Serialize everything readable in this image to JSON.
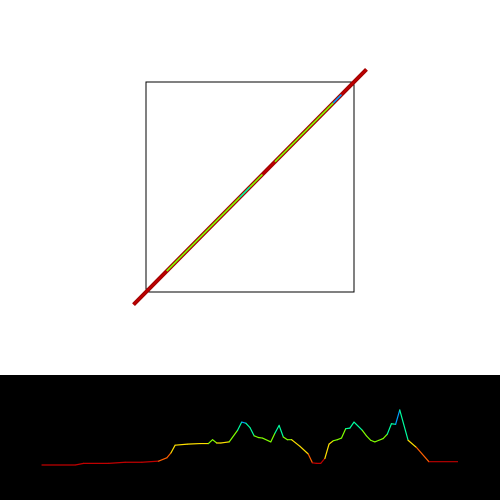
{
  "chart_data": [
    {
      "type": "line",
      "title": "",
      "xlabel": "",
      "ylabel": "",
      "xlim": [
        0,
        1
      ],
      "ylim": [
        0,
        1
      ],
      "grid": false,
      "frame_color": "#000000",
      "line_color": "#a00000",
      "colormap": [
        "#0000ff",
        "#00a0ff",
        "#00ffa0",
        "#80ff00",
        "#ffe000",
        "#ff6000",
        "#c00000"
      ],
      "series": [
        {
          "x": [
            -0.06,
            1.06
          ],
          "y": [
            -0.06,
            1.06
          ],
          "color_bands": [
            {
              "t": [
                -0.06,
                0.1
              ],
              "level": 0.02
            },
            {
              "t": [
                0.1,
                0.45
              ],
              "level": 0.45
            },
            {
              "t": [
                0.45,
                0.5
              ],
              "level": 0.7
            },
            {
              "t": [
                0.5,
                0.56
              ],
              "level": 0.45
            },
            {
              "t": [
                0.56,
                0.62
              ],
              "level": 0.02
            },
            {
              "t": [
                0.62,
                0.9
              ],
              "level": 0.45
            },
            {
              "t": [
                0.9,
                0.94
              ],
              "level": 0.85
            },
            {
              "t": [
                0.94,
                1.06
              ],
              "level": 0.02
            }
          ]
        }
      ]
    },
    {
      "type": "line",
      "title": "",
      "xlabel": "",
      "ylabel": "",
      "background": "#000000",
      "grid": false,
      "xlim": [
        0,
        1
      ],
      "ylim": [
        0,
        1
      ],
      "series": [
        {
          "x": [
            0.0,
            0.08,
            0.1,
            0.16,
            0.2,
            0.24,
            0.28,
            0.3,
            0.31,
            0.32,
            0.35,
            0.38,
            0.4,
            0.41,
            0.42,
            0.43,
            0.44,
            0.45,
            0.47,
            0.48,
            0.49,
            0.5,
            0.51,
            0.52,
            0.53,
            0.55,
            0.56,
            0.57,
            0.58,
            0.59,
            0.6,
            0.62,
            0.64,
            0.65,
            0.66,
            0.67,
            0.68,
            0.69,
            0.7,
            0.71,
            0.72,
            0.73,
            0.74,
            0.75,
            0.77,
            0.78,
            0.79,
            0.8,
            0.81,
            0.82,
            0.83,
            0.84,
            0.85,
            0.86,
            0.88,
            0.9,
            0.93
          ],
          "y": [
            0.0,
            0.0,
            0.03,
            0.03,
            0.05,
            0.05,
            0.07,
            0.13,
            0.22,
            0.36,
            0.38,
            0.39,
            0.39,
            0.46,
            0.4,
            0.4,
            0.41,
            0.42,
            0.63,
            0.78,
            0.76,
            0.68,
            0.53,
            0.5,
            0.49,
            0.42,
            0.58,
            0.72,
            0.51,
            0.46,
            0.46,
            0.34,
            0.2,
            0.04,
            0.03,
            0.03,
            0.12,
            0.38,
            0.44,
            0.46,
            0.49,
            0.66,
            0.67,
            0.78,
            0.63,
            0.53,
            0.45,
            0.42,
            0.45,
            0.48,
            0.56,
            0.75,
            0.74,
            1.0,
            0.45,
            0.32,
            0.06
          ]
        }
      ]
    }
  ]
}
